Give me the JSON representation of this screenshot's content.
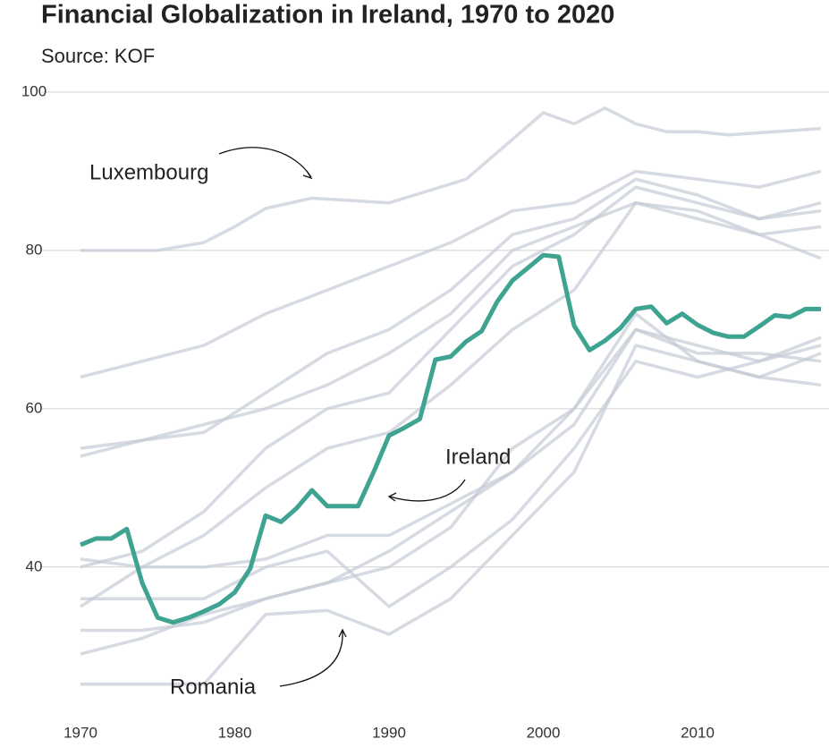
{
  "chart_data": {
    "type": "line",
    "title": "Financial Globalization in Ireland, 1970 to 2020",
    "subtitle": "Source: KOF",
    "xlim": [
      1970,
      2018
    ],
    "xticks": [
      1970,
      1980,
      1990,
      2000,
      2010
    ],
    "ylim": [
      22,
      100
    ],
    "yticks": [
      40,
      60,
      80,
      100
    ],
    "grid": true,
    "series": [
      {
        "color": "#c5cad6",
        "x": [
          1970,
          1974,
          1978,
          1982,
          1986,
          1990,
          1994,
          1998,
          2002,
          2006,
          2010,
          2014,
          2018
        ],
        "values": [
          64,
          66,
          68,
          72,
          75,
          78,
          81,
          85,
          86,
          90,
          89,
          88,
          90
        ]
      },
      {
        "color": "#c5cad6",
        "x": [
          1970,
          1974,
          1978,
          1982,
          1986,
          1990,
          1994,
          1998,
          2002,
          2006,
          2010,
          2014,
          2018
        ],
        "values": [
          55,
          56,
          57,
          62,
          67,
          70,
          75,
          82,
          84,
          89,
          87,
          84,
          86
        ]
      },
      {
        "color": "#c5cad6",
        "x": [
          1970,
          1974,
          1978,
          1982,
          1986,
          1990,
          1994,
          1998,
          2002,
          2006,
          2010,
          2014,
          2018
        ],
        "values": [
          54,
          56,
          58,
          60,
          63,
          67,
          72,
          80,
          83,
          86,
          85,
          82,
          79
        ]
      },
      {
        "color": "#c5cad6",
        "x": [
          1970,
          1974,
          1978,
          1982,
          1986,
          1990,
          1994,
          1998,
          2002,
          2006,
          2010,
          2014,
          2018
        ],
        "values": [
          40,
          42,
          47,
          55,
          60,
          62,
          70,
          78,
          82,
          88,
          86,
          84,
          85
        ]
      },
      {
        "color": "#c5cad6",
        "x": [
          1970,
          1974,
          1978,
          1982,
          1986,
          1990,
          1994,
          1998,
          2002,
          2006,
          2010,
          2014,
          2018
        ],
        "values": [
          35,
          40,
          44,
          50,
          55,
          57,
          63,
          70,
          75,
          86,
          84,
          82,
          83
        ]
      },
      {
        "color": "#c5cad6",
        "x": [
          1970,
          1974,
          1978,
          1982,
          1986,
          1990,
          1994,
          1998,
          2002,
          2006,
          2010,
          2014,
          2018
        ],
        "values": [
          41,
          40,
          40,
          41,
          44,
          44,
          48,
          52,
          60,
          70,
          68,
          66,
          68
        ]
      },
      {
        "color": "#c5cad6",
        "x": [
          1970,
          1974,
          1978,
          1982,
          1986,
          1990,
          1994,
          1998,
          2002,
          2006,
          2010,
          2014,
          2018
        ],
        "values": [
          32,
          32,
          33,
          36,
          38,
          40,
          45,
          55,
          60,
          72,
          66,
          64,
          63
        ]
      },
      {
        "color": "#c5cad6",
        "x": [
          1970,
          1974,
          1978,
          1982,
          1986,
          1990,
          1994,
          1998,
          2002,
          2006,
          2010,
          2014,
          2018
        ],
        "values": [
          29,
          31,
          34,
          36,
          38,
          42,
          47,
          52,
          58,
          70,
          67,
          67,
          66
        ]
      },
      {
        "color": "#c5cad6",
        "x": [
          1970,
          1974,
          1978,
          1982,
          1986,
          1990,
          1994,
          1998,
          2002,
          2006,
          2010,
          2014,
          2018
        ],
        "values": [
          36,
          36,
          36,
          40,
          42,
          35,
          40,
          46,
          55,
          66,
          64,
          66,
          69
        ]
      },
      {
        "name": "Luxembourg",
        "color": "#c5cad6",
        "x": [
          1970,
          1975,
          1978,
          1980,
          1982,
          1985,
          1990,
          1995,
          2000,
          2002,
          2004,
          2006,
          2008,
          2010,
          2012,
          2015,
          2018
        ],
        "values": [
          80,
          80,
          81,
          83,
          85.3,
          86.6,
          86,
          89,
          97.4,
          96,
          98,
          96,
          95,
          95,
          94.6,
          95,
          95.4
        ]
      },
      {
        "name": "Romania",
        "color": "#c5cad6",
        "x": [
          1970,
          1974,
          1978,
          1982,
          1986,
          1990,
          1994,
          1998,
          2002,
          2006,
          2010,
          2014,
          2018
        ],
        "values": [
          25.2,
          25.2,
          25.2,
          34,
          34.5,
          31.5,
          36,
          44,
          52,
          68,
          66,
          64,
          67
        ]
      },
      {
        "name": "Ireland",
        "color": "#3fa392",
        "highlight": true,
        "x": [
          1970,
          1971,
          1972,
          1973,
          1974,
          1975,
          1976,
          1977,
          1978,
          1979,
          1980,
          1981,
          1982,
          1983,
          1984,
          1985,
          1986,
          1987,
          1988,
          1989,
          1990,
          1991,
          1992,
          1993,
          1994,
          1995,
          1996,
          1997,
          1998,
          1999,
          2000,
          2001,
          2002,
          2003,
          2004,
          2005,
          2006,
          2007,
          2008,
          2009,
          2010,
          2011,
          2012,
          2013,
          2014,
          2015,
          2016,
          2017,
          2018
        ],
        "values": [
          42.8,
          43.6,
          43.6,
          44.8,
          38,
          33.6,
          33,
          33.6,
          34.4,
          35.3,
          36.8,
          39.8,
          46.5,
          45.7,
          47.4,
          49.7,
          47.7,
          47.7,
          47.7,
          52,
          56.6,
          57.6,
          58.7,
          66.2,
          66.6,
          68.5,
          69.8,
          73.5,
          76.2,
          77.8,
          79.4,
          79.2,
          70.5,
          67.4,
          68.6,
          70.2,
          72.6,
          72.9,
          70.8,
          72,
          70.6,
          69.6,
          69.1,
          69.1,
          70.4,
          71.8,
          71.6,
          72.6,
          72.6
        ]
      }
    ]
  }
}
